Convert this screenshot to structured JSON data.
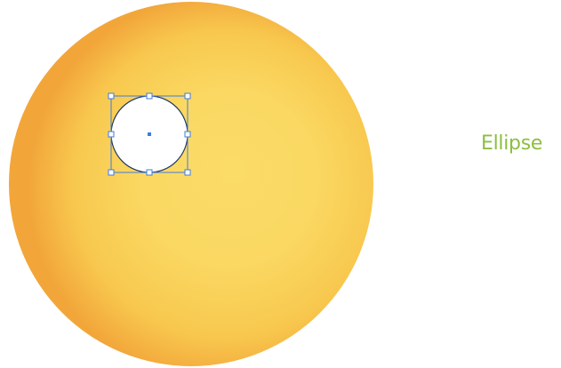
{
  "tool_label": "Ellipse",
  "colors": {
    "sphere_highlight": "#fbdc67",
    "sphere_mid": "#f8c84e",
    "sphere_shadow": "#f2a63a",
    "ellipse_fill": "#ffffff",
    "ellipse_stroke": "#1f3566",
    "selection": "#3d7be0",
    "label": "#8cbf3f"
  }
}
